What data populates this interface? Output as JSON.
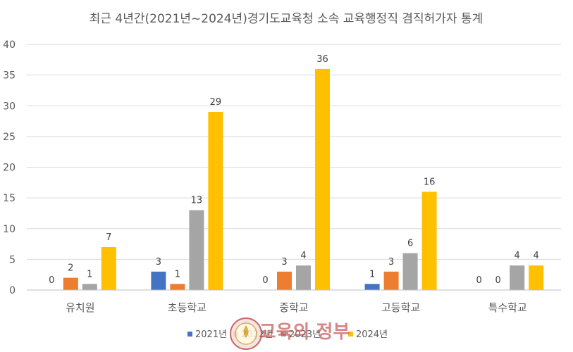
{
  "chart_data": {
    "type": "bar",
    "title": "최근 4년간(2021년~2024년)경기도교육청 소속 교육행정직 겸직허가자 통계",
    "categories": [
      "유치원",
      "초등학교",
      "중학교",
      "고등학교",
      "특수학교"
    ],
    "series": [
      {
        "name": "2021년",
        "color": "#4472c4",
        "values": [
          0,
          3,
          0,
          1,
          0
        ]
      },
      {
        "name": "2022년",
        "color": "#ed7d31",
        "values": [
          2,
          1,
          3,
          3,
          0
        ]
      },
      {
        "name": "2023년",
        "color": "#a5a5a5",
        "values": [
          1,
          13,
          4,
          6,
          4
        ]
      },
      {
        "name": "2024년",
        "color": "#ffc000",
        "values": [
          7,
          29,
          36,
          16,
          4
        ]
      }
    ],
    "ylim": [
      0,
      40
    ],
    "yticks": [
      0,
      5,
      10,
      15,
      20,
      25,
      30,
      35,
      40
    ],
    "grid": true,
    "legend": "bottom",
    "watermark": "교육의 정부"
  }
}
